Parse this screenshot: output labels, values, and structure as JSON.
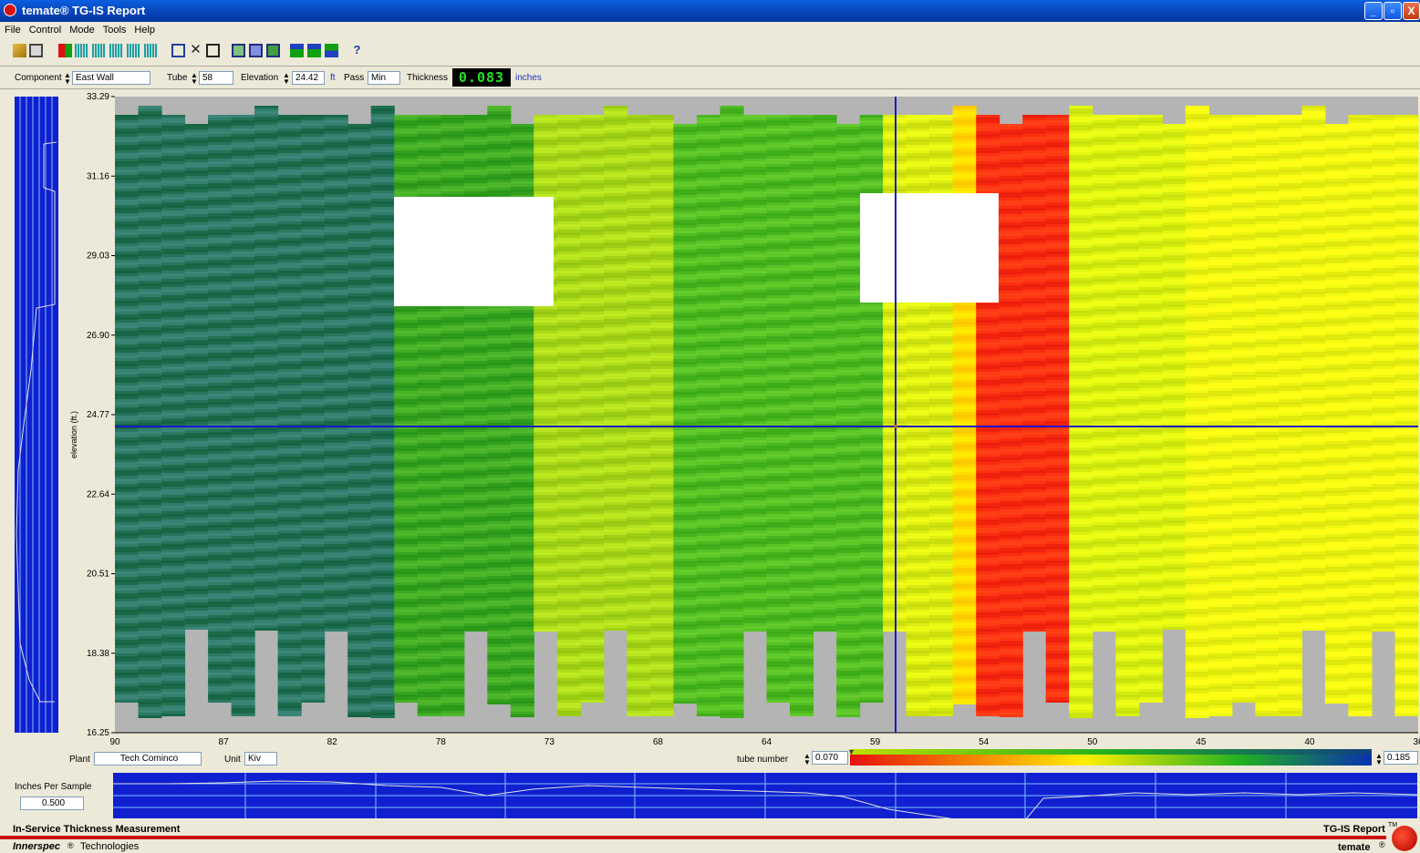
{
  "window": {
    "title": "temate® TG-IS Report",
    "min": "_",
    "max": "▫",
    "close": "X"
  },
  "menu": [
    "File",
    "Control",
    "Mode",
    "Tools",
    "Help"
  ],
  "fields": {
    "component_label": "Component",
    "component_value": "East Wall",
    "tube_label": "Tube",
    "tube_value": "58",
    "elevation_label": "Elevation",
    "elevation_value": "24.42",
    "elevation_unit": "ft",
    "pass_label": "Pass",
    "pass_value": "Min",
    "thickness_label": "Thickness",
    "thickness_value": "0.083",
    "thickness_unit": "inches"
  },
  "plot": {
    "ylabel": "elevation (ft.)",
    "y_ticks": [
      "33.29",
      "31.16",
      "29.03",
      "26.90",
      "24.77",
      "22.64",
      "20.51",
      "18.38",
      "16.25"
    ],
    "x_ticks": [
      "90",
      "87",
      "82",
      "78",
      "73",
      "68",
      "64",
      "59",
      "54",
      "50",
      "45",
      "40",
      "36"
    ],
    "x_label": "tube number",
    "cursor": {
      "tube": 58,
      "elevation": 24.42
    }
  },
  "footer": {
    "plant_label": "Plant",
    "plant_value": "Tech Cominco",
    "unit_label": "Unit",
    "unit_value": "Kiv",
    "scale_min": "0.070",
    "scale_max": "0.185",
    "ips_label": "Inches Per Sample",
    "ips_value": "0.500"
  },
  "status": {
    "left_title": "In-Service Thickness Measurement",
    "right_title": "TG-IS Report",
    "tm": "TM",
    "company_italic": "Innerspec",
    "company_rest": "Technologies",
    "brand": "temate",
    "reg": "®"
  },
  "colors": {
    "plot_blue": "#1020d0",
    "cursor": "#1818c8",
    "gray_bg": "#b4b4b4",
    "red": "#e81010",
    "yellow": "#ffef00",
    "green": "#1a9a1a",
    "lcd_text": "#22e022"
  },
  "icons": [
    "open-icon",
    "print-icon",
    "color-map-icon",
    "pass1-icon",
    "pass2-icon",
    "pass3-icon",
    "pass4-icon",
    "pass5-icon",
    "zoom-icon",
    "cross-icon",
    "frame-icon",
    "view1-icon",
    "view2-icon",
    "view3-icon",
    "filter1-icon",
    "filter2-icon",
    "filter3-icon",
    "help-icon"
  ]
}
